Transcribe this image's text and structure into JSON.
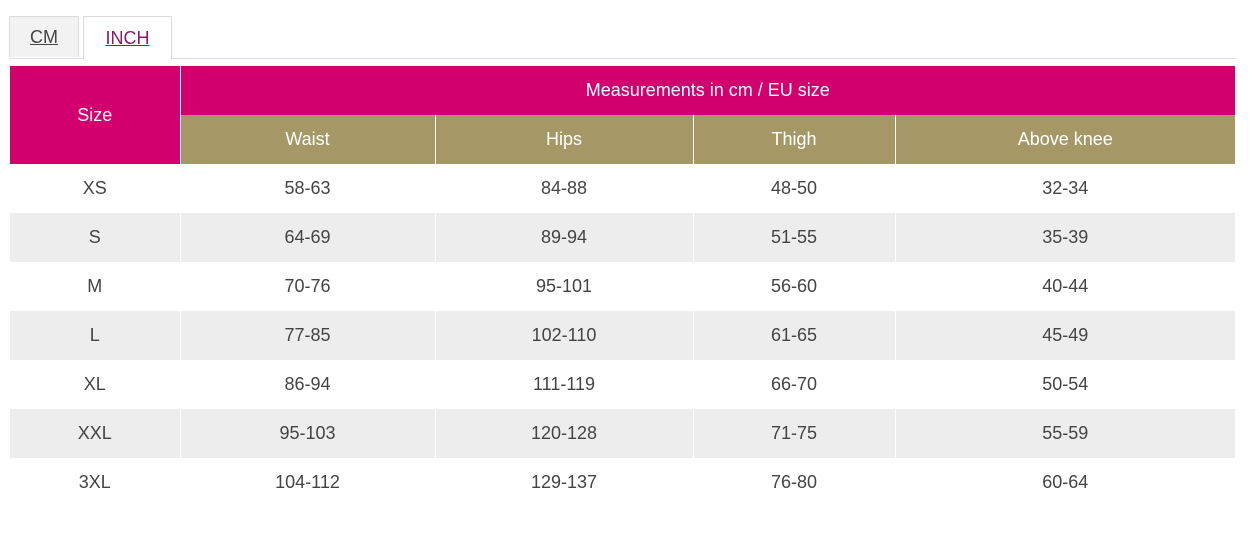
{
  "tabs": [
    {
      "label": "CM"
    },
    {
      "label": "INCH"
    }
  ],
  "table": {
    "size_header": "Size",
    "group_header": "Measurements in cm / EU size",
    "columns": [
      "Waist",
      "Hips",
      "Thigh",
      "Above knee"
    ],
    "rows": [
      {
        "size": "XS",
        "values": [
          "58-63",
          "84-88",
          "48-50",
          "32-34"
        ]
      },
      {
        "size": "S",
        "values": [
          "64-69",
          "89-94",
          "51-55",
          "35-39"
        ]
      },
      {
        "size": "M",
        "values": [
          "70-76",
          "95-101",
          "56-60",
          "40-44"
        ]
      },
      {
        "size": "L",
        "values": [
          "77-85",
          "102-110",
          "61-65",
          "45-49"
        ]
      },
      {
        "size": "XL",
        "values": [
          "86-94",
          "111-119",
          "66-70",
          "50-54"
        ]
      },
      {
        "size": "XXL",
        "values": [
          "95-103",
          "120-128",
          "71-75",
          "55-59"
        ]
      },
      {
        "size": "3XL",
        "values": [
          "104-112",
          "129-137",
          "76-80",
          "60-64"
        ]
      }
    ]
  },
  "colors": {
    "header_magenta": "#d1006e",
    "header_olive": "#a59866",
    "row_stripe": "#ededed",
    "active_tab_text": "#8a1a6a"
  }
}
